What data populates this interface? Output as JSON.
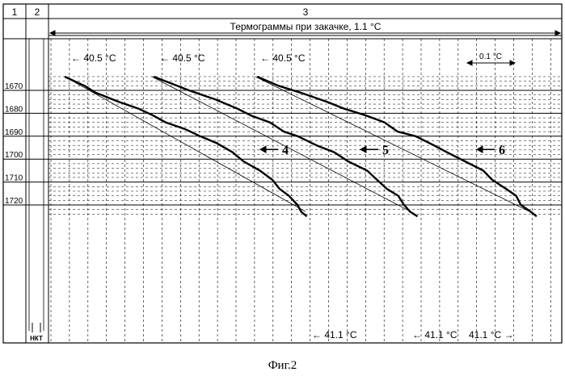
{
  "table": {
    "col_numbers": [
      "1",
      "2",
      "3"
    ],
    "header_title": "Термограммы при закачке, 1.1 °C",
    "tubing_label": "НКТ"
  },
  "scale_bar_label": "0.1 °C",
  "caption": "Фиг.2",
  "chart_data": {
    "type": "line",
    "title": "Термограммы при закачке, 1.1 °C",
    "xlabel": "",
    "ylabel": "",
    "y_axis": {
      "ticks": [
        1670,
        1680,
        1690,
        1700,
        1710,
        1720
      ],
      "ylim": [
        1662,
        1724
      ],
      "inverted": true
    },
    "temperature_span": "1.1 °C",
    "grid": true,
    "annotations": {
      "top": [
        "← 40.5 °C",
        "← 40.5 °C",
        "← 40.5 °C"
      ],
      "bottom": [
        "← 41.1 °C",
        "← 41.1 °C",
        "41.1 °C →"
      ]
    },
    "series": [
      {
        "name": "4",
        "dT_depth": [
          [
            0,
            1664
          ],
          [
            0.05,
            1668
          ],
          [
            0.09,
            1671
          ],
          [
            0.15,
            1675
          ],
          [
            0.2,
            1678
          ],
          [
            0.25,
            1681
          ],
          [
            0.28,
            1684
          ],
          [
            0.33,
            1687
          ],
          [
            0.38,
            1690
          ],
          [
            0.42,
            1693
          ],
          [
            0.46,
            1697
          ],
          [
            0.5,
            1701
          ],
          [
            0.54,
            1705
          ],
          [
            0.57,
            1709
          ],
          [
            0.6,
            1713
          ],
          [
            0.62,
            1716
          ],
          [
            0.64,
            1720
          ],
          [
            0.66,
            1723
          ],
          [
            0.67,
            1725
          ]
        ]
      },
      {
        "name": "5",
        "dT_depth": [
          [
            0,
            1664
          ],
          [
            0.05,
            1667
          ],
          [
            0.1,
            1670
          ],
          [
            0.16,
            1674
          ],
          [
            0.22,
            1678
          ],
          [
            0.26,
            1681
          ],
          [
            0.3,
            1684
          ],
          [
            0.34,
            1688
          ],
          [
            0.38,
            1690
          ],
          [
            0.42,
            1694
          ],
          [
            0.47,
            1697
          ],
          [
            0.51,
            1701
          ],
          [
            0.55,
            1705
          ],
          [
            0.58,
            1709
          ],
          [
            0.61,
            1713
          ],
          [
            0.63,
            1716
          ],
          [
            0.65,
            1720
          ],
          [
            0.67,
            1723
          ],
          [
            0.68,
            1725
          ]
        ]
      },
      {
        "name": "6",
        "dT_depth": [
          [
            0,
            1664
          ],
          [
            0.06,
            1668
          ],
          [
            0.11,
            1671
          ],
          [
            0.17,
            1675
          ],
          [
            0.22,
            1678
          ],
          [
            0.27,
            1681
          ],
          [
            0.31,
            1684
          ],
          [
            0.35,
            1688
          ],
          [
            0.39,
            1690
          ],
          [
            0.43,
            1694
          ],
          [
            0.47,
            1697
          ],
          [
            0.51,
            1701
          ],
          [
            0.55,
            1705
          ],
          [
            0.58,
            1709
          ],
          [
            0.61,
            1713
          ],
          [
            0.63,
            1716
          ],
          [
            0.65,
            1720
          ],
          [
            0.67,
            1723
          ],
          [
            0.68,
            1725
          ]
        ]
      }
    ]
  }
}
